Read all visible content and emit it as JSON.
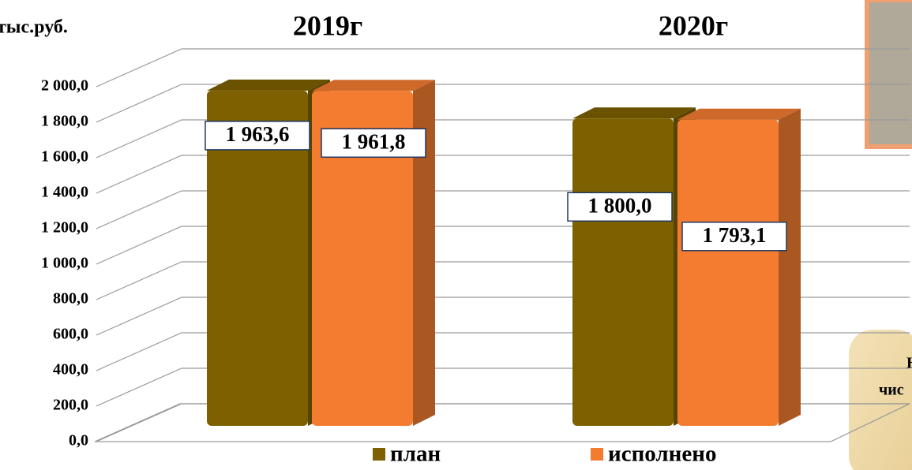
{
  "chart_data": {
    "type": "bar3d",
    "y_label": "тыс.руб.",
    "categories": [
      "2019г",
      "2020г"
    ],
    "series": [
      {
        "name": "план",
        "color": "#7d6000",
        "values": [
          1963.6,
          1800.0
        ],
        "value_labels": [
          "1 963,6",
          "1 800,0"
        ]
      },
      {
        "name": "исполнено",
        "color": "#f47c30",
        "values": [
          1961.8,
          1793.1
        ],
        "value_labels": [
          "1 961,8",
          "1 793,1"
        ]
      }
    ],
    "ylim": [
      0,
      2000
    ],
    "yticks": [
      {
        "value": 0,
        "label": "0,0"
      },
      {
        "value": 200,
        "label": "200,0"
      },
      {
        "value": 400,
        "label": "400,0"
      },
      {
        "value": 600,
        "label": "600,0"
      },
      {
        "value": 800,
        "label": "800,0"
      },
      {
        "value": 1000,
        "label": "1 000,0"
      },
      {
        "value": 1200,
        "label": "1 200,0"
      },
      {
        "value": 1400,
        "label": "1 400,0"
      },
      {
        "value": 1600,
        "label": "1 600,0"
      },
      {
        "value": 1800,
        "label": "1 800,0"
      },
      {
        "value": 2000,
        "label": "2 000,0"
      }
    ],
    "grid": true,
    "legend": "bottom",
    "side_note": [
      "Н",
      "чис"
    ]
  }
}
